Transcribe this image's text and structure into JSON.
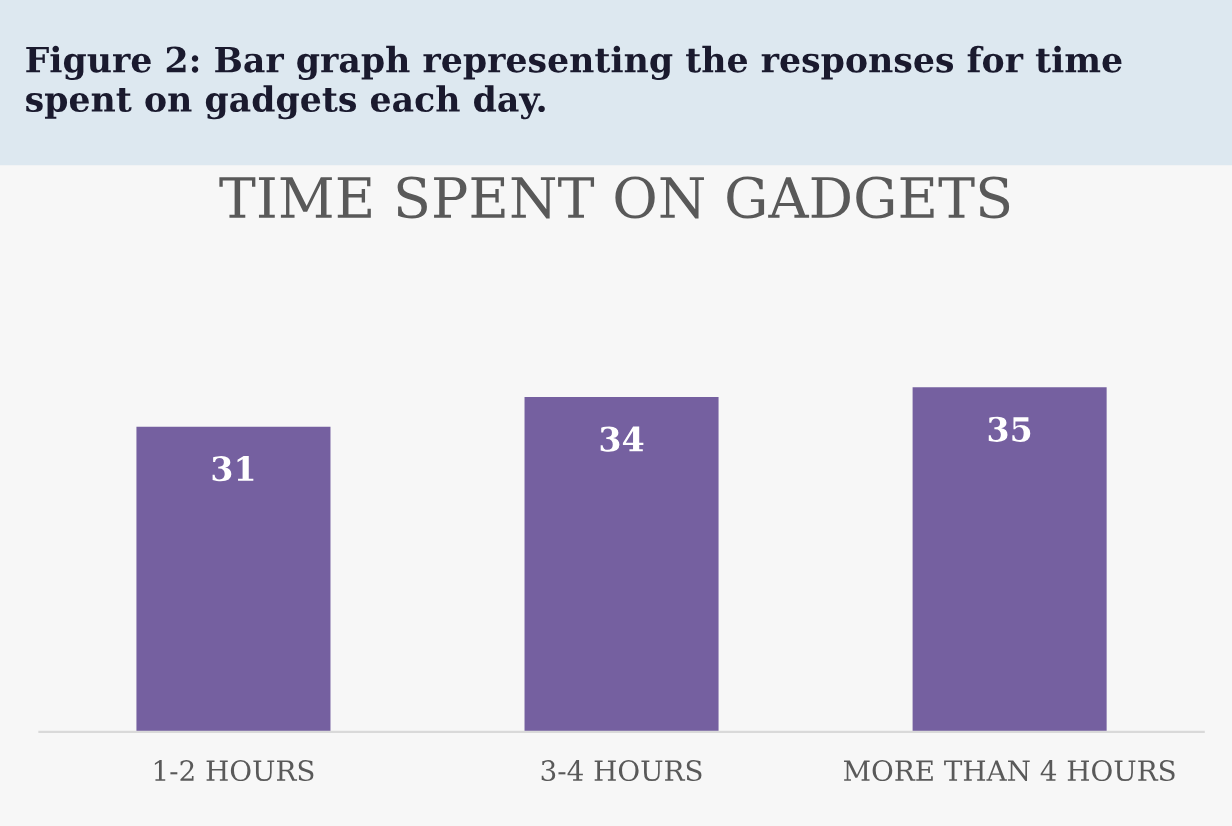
{
  "chart_data": {
    "type": "bar",
    "title": "TIME SPENT ON GADGETS",
    "annotations": [
      "Figure 2: Bar graph representing the responses for time spent on gadgets each day."
    ],
    "categories": [
      "1-2 HOURS",
      "3-4 HOURS",
      "MORE THAN 4 HOURS"
    ],
    "values": [
      31,
      34,
      35
    ],
    "color": "#7560a0",
    "data_labels": true,
    "grid": false,
    "legend": false
  }
}
